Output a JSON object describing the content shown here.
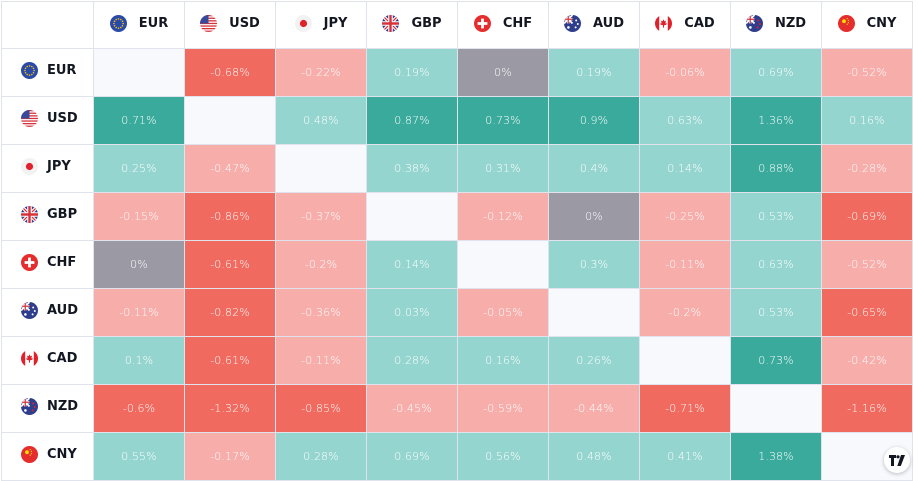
{
  "currencies": [
    {
      "code": "EUR",
      "flag": "eu-flag-icon"
    },
    {
      "code": "USD",
      "flag": "us-flag-icon"
    },
    {
      "code": "JPY",
      "flag": "jp-flag-icon"
    },
    {
      "code": "GBP",
      "flag": "gb-flag-icon"
    },
    {
      "code": "CHF",
      "flag": "ch-flag-icon"
    },
    {
      "code": "AUD",
      "flag": "au-flag-icon"
    },
    {
      "code": "CAD",
      "flag": "ca-flag-icon"
    },
    {
      "code": "NZD",
      "flag": "nz-flag-icon"
    },
    {
      "code": "CNY",
      "flag": "cn-flag-icon"
    }
  ],
  "matrix": [
    [
      "",
      "-0.68%",
      "-0.22%",
      "0.19%",
      "0%",
      "0.19%",
      "-0.06%",
      "0.69%",
      "-0.52%"
    ],
    [
      "0.71%",
      "",
      "0.48%",
      "0.87%",
      "0.73%",
      "0.9%",
      "0.63%",
      "1.36%",
      "0.16%"
    ],
    [
      "0.25%",
      "-0.47%",
      "",
      "0.38%",
      "0.31%",
      "0.4%",
      "0.14%",
      "0.88%",
      "-0.28%"
    ],
    [
      "-0.15%",
      "-0.86%",
      "-0.37%",
      "",
      "-0.12%",
      "0%",
      "-0.25%",
      "0.53%",
      "-0.69%"
    ],
    [
      "0%",
      "-0.61%",
      "-0.2%",
      "0.14%",
      "",
      "0.3%",
      "-0.11%",
      "0.63%",
      "-0.52%"
    ],
    [
      "-0.11%",
      "-0.82%",
      "-0.36%",
      "0.03%",
      "-0.05%",
      "",
      "-0.2%",
      "0.53%",
      "-0.65%"
    ],
    [
      "0.1%",
      "-0.61%",
      "-0.11%",
      "0.28%",
      "0.16%",
      "0.26%",
      "",
      "0.73%",
      "-0.42%"
    ],
    [
      "-0.6%",
      "-1.32%",
      "-0.85%",
      "-0.45%",
      "-0.59%",
      "-0.44%",
      "-0.71%",
      "",
      "-1.16%"
    ],
    [
      "0.55%",
      "-0.17%",
      "0.28%",
      "0.69%",
      "0.56%",
      "0.48%",
      "0.41%",
      "1.38%",
      ""
    ]
  ],
  "colors": {
    "positive_light": "#95d5cf",
    "positive_strong": "#3aaa9c",
    "negative_light": "#f7aeab",
    "negative_strong": "#f06a5f",
    "neutral": "#9a99a4",
    "empty": "#f8f9fd"
  },
  "logo": {
    "icon": "tradingview-logo-icon"
  }
}
